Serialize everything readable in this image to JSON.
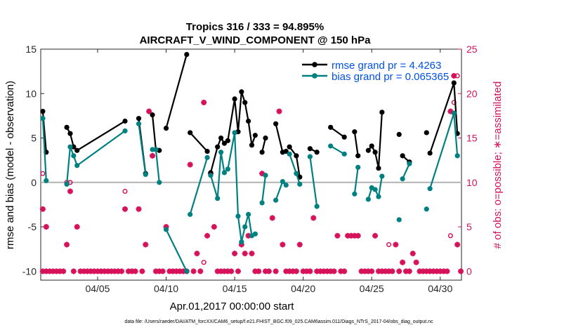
{
  "chart_data": {
    "type": "line",
    "title": "Tropics 316 / 333 = 94.895%",
    "subtitle": "AIRCRAFT_V_WIND_COMPONENT @ 150 hPa",
    "xlabel": "Apr.01,2017 00:00:00 start",
    "ylabel_left": "rmse and bias (model - observation)",
    "ylabel_right": "# of obs: o=possible; ∗=assimilated",
    "footnote": "data file: /Users/raeder/DAI/ATM_forcXX/CAM6_setup/f.e21.FHIST_BGC.f09_025.CAM6assim.011/Diags_NTrS_2017-04/obs_diag_output.nc",
    "xlim": [
      1,
      31.25
    ],
    "ylim_left": [
      -11,
      15
    ],
    "ylim_right": [
      -1,
      25
    ],
    "x_ticks": [
      5,
      10,
      15,
      20,
      25,
      30
    ],
    "x_tick_labels": [
      "04/05",
      "04/10",
      "04/15",
      "04/20",
      "04/25",
      "04/30"
    ],
    "y_ticks_left": [
      -10,
      -5,
      0,
      5,
      10,
      15
    ],
    "y_ticks_right": [
      0,
      5,
      10,
      15,
      20,
      25
    ],
    "zero_line": 0,
    "colors": {
      "rmse": "#000000",
      "bias": "#008080",
      "obs": "#d6125a",
      "legend_text": "#0050e6",
      "zero": "#b4b4b4"
    },
    "series": [
      {
        "name": "rmse grand pr = 4.4263",
        "axis": "left",
        "points": [
          [
            1.0,
            8.0
          ],
          [
            1.25,
            3.4
          ],
          [
            2.75,
            6.2
          ],
          [
            3.0,
            5.5
          ],
          [
            3.25,
            4.0
          ],
          [
            3.5,
            3.6
          ],
          [
            7.0,
            6.9
          ],
          [
            8.0,
            7.2
          ],
          [
            8.5,
            1.0
          ],
          [
            9.0,
            7.6
          ],
          [
            9.25,
            3.7
          ],
          [
            9.5,
            3.6
          ],
          [
            10.0,
            6.1
          ],
          [
            11.5,
            14.4
          ],
          [
            11.75,
            5.6
          ],
          [
            13.0,
            3.5
          ],
          [
            13.25,
            1.1
          ],
          [
            13.75,
            4.0
          ],
          [
            14.0,
            5.0
          ],
          [
            14.25,
            4.4
          ],
          [
            14.5,
            4.7
          ],
          [
            15.0,
            9.4
          ],
          [
            15.25,
            5.7
          ],
          [
            15.5,
            10.2
          ],
          [
            15.75,
            9.0
          ],
          [
            16.0,
            6.9
          ],
          [
            16.25,
            4.2
          ],
          [
            16.5,
            5.3
          ],
          [
            17.0,
            3.4
          ],
          [
            17.25,
            5.0
          ],
          [
            18.0,
            6.6
          ],
          [
            18.5,
            3.4
          ],
          [
            18.75,
            3.5
          ],
          [
            19.0,
            4.0
          ],
          [
            19.5,
            3.0
          ],
          [
            19.75,
            0.6
          ],
          [
            20.5,
            3.8
          ],
          [
            21.0,
            3.4
          ],
          [
            22.0,
            6.2
          ],
          [
            23.0,
            5.1
          ],
          [
            23.75,
            5.7
          ],
          [
            24.0,
            3.0
          ],
          [
            24.75,
            3.6
          ],
          [
            25.0,
            4.1
          ],
          [
            25.25,
            3.4
          ],
          [
            25.5,
            1.6
          ],
          [
            25.75,
            7.9
          ],
          [
            27.0,
            5.4
          ],
          [
            27.25,
            3.0
          ],
          [
            27.75,
            2.3
          ],
          [
            29.0,
            5.6
          ],
          [
            29.25,
            3.3
          ],
          [
            31.0,
            11.2
          ],
          [
            31.25,
            5.5
          ]
        ],
        "segment_breaks": [
          [
            1,
            2
          ],
          [
            6,
            7
          ],
          [
            8,
            9
          ],
          [
            11,
            12
          ],
          [
            13,
            14
          ],
          [
            15,
            16
          ],
          [
            19,
            20
          ],
          [
            27,
            28
          ],
          [
            29,
            30
          ],
          [
            32,
            33
          ],
          [
            35,
            36
          ],
          [
            37,
            38
          ],
          [
            39,
            40
          ],
          [
            41,
            42
          ],
          [
            46,
            47
          ],
          [
            47,
            48
          ],
          [
            49,
            50
          ],
          [
            50,
            51
          ]
        ]
      },
      {
        "name": "bias grand pr = 0.065365",
        "axis": "left",
        "points": [
          [
            1.0,
            7.2
          ],
          [
            1.25,
            0.2
          ],
          [
            2.75,
            -0.2
          ],
          [
            3.0,
            4.0
          ],
          [
            3.25,
            3.0
          ],
          [
            3.5,
            1.9
          ],
          [
            7.0,
            5.8
          ],
          [
            8.0,
            6.6
          ],
          [
            8.5,
            0.9
          ],
          [
            9.0,
            3.7
          ],
          [
            9.25,
            3.7
          ],
          [
            9.5,
            0.0
          ],
          [
            10.0,
            -5.3
          ],
          [
            11.5,
            -10.0
          ],
          [
            11.75,
            -3.6
          ],
          [
            13.0,
            2.8
          ],
          [
            13.25,
            0.8
          ],
          [
            13.75,
            -1.8
          ],
          [
            14.0,
            3.4
          ],
          [
            14.25,
            1.1
          ],
          [
            14.5,
            1.5
          ],
          [
            15.0,
            5.6
          ],
          [
            15.25,
            -3.8
          ],
          [
            15.5,
            -6.7
          ],
          [
            15.75,
            -5.0
          ],
          [
            16.0,
            -3.6
          ],
          [
            16.25,
            -6.0
          ],
          [
            16.5,
            -5.8
          ],
          [
            17.0,
            -2.3
          ],
          [
            17.25,
            0.8
          ],
          [
            18.0,
            -2.0
          ],
          [
            18.5,
            0.1
          ],
          [
            18.75,
            -0.3
          ],
          [
            19.0,
            3.2
          ],
          [
            19.5,
            1.0
          ],
          [
            19.75,
            -0.2
          ],
          [
            20.5,
            2.9
          ],
          [
            21.0,
            -2.7
          ],
          [
            22.0,
            4.1
          ],
          [
            23.0,
            3.2
          ],
          [
            23.75,
            -1.3
          ],
          [
            24.0,
            1.7
          ],
          [
            24.75,
            -1.9
          ],
          [
            25.0,
            -0.6
          ],
          [
            25.25,
            -0.8
          ],
          [
            25.5,
            -1.6
          ],
          [
            25.75,
            0.7
          ],
          [
            27.0,
            -4.2
          ],
          [
            27.25,
            0.4
          ],
          [
            27.75,
            2.1
          ],
          [
            29.0,
            -3.0
          ],
          [
            29.25,
            -0.7
          ],
          [
            31.0,
            7.8
          ],
          [
            31.25,
            3.0
          ]
        ]
      }
    ],
    "obs_possible": {
      "axis": "right",
      "points": [
        [
          1.0,
          11.0
        ],
        [
          2.75,
          10.0
        ],
        [
          3.0,
          10.0
        ],
        [
          7.0,
          9.0
        ],
        [
          12.75,
          1.0
        ],
        [
          26.25,
          3.0
        ],
        [
          30.75,
          4.0
        ],
        [
          31.0,
          19.0
        ],
        [
          31.25,
          22.0
        ]
      ]
    },
    "obs_assimilated": {
      "axis": "right",
      "points": [
        [
          1.0,
          7.0
        ],
        [
          1.25,
          5.0
        ],
        [
          1.0,
          0.0
        ],
        [
          1.25,
          0.0
        ],
        [
          1.5,
          0.0
        ],
        [
          1.75,
          0.0
        ],
        [
          2.0,
          0.0
        ],
        [
          2.25,
          0.0
        ],
        [
          2.5,
          0.0
        ],
        [
          2.75,
          3.0
        ],
        [
          3.0,
          9.0
        ],
        [
          3.25,
          0.0
        ],
        [
          3.5,
          5.0
        ],
        [
          3.75,
          0.0
        ],
        [
          4.0,
          0.0
        ],
        [
          4.25,
          0.0
        ],
        [
          4.5,
          0.0
        ],
        [
          4.75,
          0.0
        ],
        [
          5.0,
          0.0
        ],
        [
          5.25,
          0.0
        ],
        [
          5.5,
          0.0
        ],
        [
          5.75,
          0.0
        ],
        [
          6.0,
          0.0
        ],
        [
          6.25,
          0.0
        ],
        [
          6.5,
          0.0
        ],
        [
          6.75,
          0.0
        ],
        [
          7.0,
          7.0
        ],
        [
          7.25,
          0.0
        ],
        [
          7.5,
          0.0
        ],
        [
          7.75,
          0.0
        ],
        [
          8.0,
          7.0
        ],
        [
          8.25,
          0.0
        ],
        [
          8.5,
          3.0
        ],
        [
          8.75,
          18.0
        ],
        [
          9.0,
          13.0
        ],
        [
          9.25,
          0.0
        ],
        [
          9.5,
          0.0
        ],
        [
          9.75,
          0.0
        ],
        [
          10.0,
          5.0
        ],
        [
          10.25,
          0.0
        ],
        [
          10.5,
          0.0
        ],
        [
          10.75,
          0.0
        ],
        [
          11.0,
          0.0
        ],
        [
          11.25,
          0.0
        ],
        [
          11.5,
          0.0
        ],
        [
          11.75,
          12.0
        ],
        [
          12.0,
          0.0
        ],
        [
          12.25,
          2.0
        ],
        [
          12.5,
          0.0
        ],
        [
          12.75,
          19.0
        ],
        [
          13.0,
          4.0
        ],
        [
          13.25,
          11.0
        ],
        [
          13.5,
          5.0
        ],
        [
          13.75,
          0.0
        ],
        [
          14.0,
          0.0
        ],
        [
          14.25,
          0.0
        ],
        [
          14.5,
          0.0
        ],
        [
          14.75,
          0.0
        ],
        [
          15.0,
          2.0
        ],
        [
          15.25,
          0.0
        ],
        [
          15.5,
          3.0
        ],
        [
          15.75,
          2.0
        ],
        [
          16.0,
          4.0
        ],
        [
          16.25,
          2.0
        ],
        [
          16.5,
          0.0
        ],
        [
          16.75,
          0.0
        ],
        [
          17.0,
          11.0
        ],
        [
          17.25,
          0.0
        ],
        [
          17.5,
          0.0
        ],
        [
          17.75,
          6.0
        ],
        [
          18.0,
          0.0
        ],
        [
          18.25,
          18.0
        ],
        [
          18.5,
          3.0
        ],
        [
          18.75,
          0.0
        ],
        [
          19.0,
          0.0
        ],
        [
          19.25,
          0.0
        ],
        [
          19.5,
          0.0
        ],
        [
          19.75,
          3.0
        ],
        [
          20.0,
          0.0
        ],
        [
          20.25,
          0.0
        ],
        [
          20.5,
          0.0
        ],
        [
          20.75,
          6.0
        ],
        [
          21.0,
          0.0
        ],
        [
          21.25,
          0.0
        ],
        [
          21.5,
          0.0
        ],
        [
          21.75,
          0.0
        ],
        [
          22.0,
          0.0
        ],
        [
          22.25,
          0.0
        ],
        [
          22.5,
          4.0
        ],
        [
          22.75,
          0.0
        ],
        [
          23.0,
          0.0
        ],
        [
          23.25,
          4.0
        ],
        [
          23.5,
          4.0
        ],
        [
          23.75,
          4.0
        ],
        [
          24.0,
          4.0
        ],
        [
          24.25,
          0.0
        ],
        [
          24.5,
          0.0
        ],
        [
          24.75,
          0.0
        ],
        [
          25.0,
          0.0
        ],
        [
          25.25,
          4.0
        ],
        [
          25.5,
          0.0
        ],
        [
          25.75,
          0.0
        ],
        [
          26.0,
          0.0
        ],
        [
          26.25,
          0.0
        ],
        [
          26.5,
          0.0
        ],
        [
          26.75,
          3.0
        ],
        [
          27.0,
          0.0
        ],
        [
          27.25,
          1.0
        ],
        [
          27.5,
          0.0
        ],
        [
          27.75,
          0.0
        ],
        [
          28.0,
          2.0
        ],
        [
          28.25,
          1.0
        ],
        [
          28.5,
          0.0
        ],
        [
          28.75,
          0.0
        ],
        [
          29.0,
          0.0
        ],
        [
          29.25,
          0.0
        ],
        [
          29.5,
          0.0
        ],
        [
          29.75,
          0.0
        ],
        [
          30.0,
          0.0
        ],
        [
          30.25,
          0.0
        ],
        [
          30.5,
          0.0
        ],
        [
          30.75,
          18.0
        ],
        [
          31.0,
          22.0
        ],
        [
          31.25,
          3.0
        ],
        [
          31.5,
          0.0
        ]
      ]
    }
  }
}
